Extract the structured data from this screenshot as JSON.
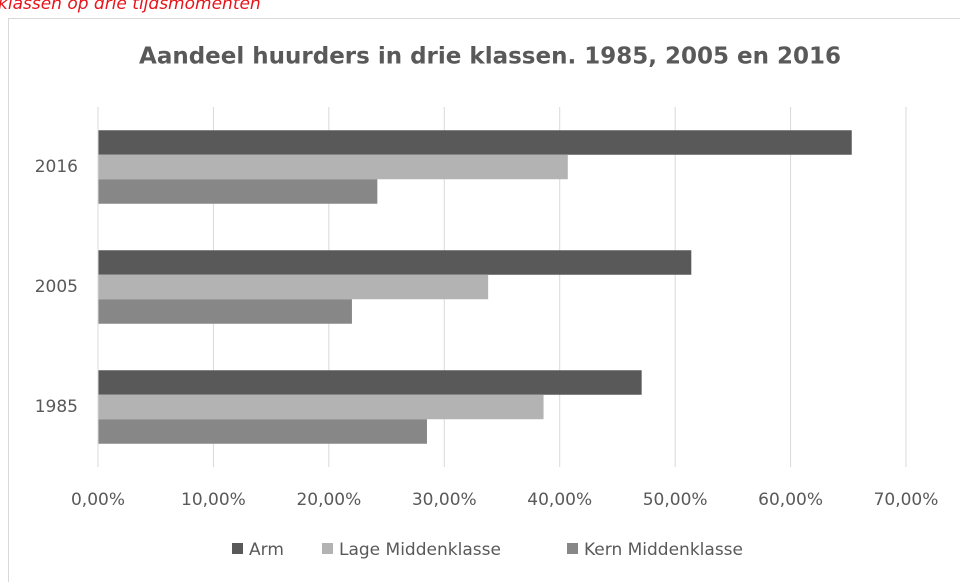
{
  "caption": "klassen op drie tijdsmomenten",
  "chart_data": {
    "type": "hbar",
    "title": "Aandeel huurders in drie klassen. 1985, 2005 en 2016",
    "categories": [
      "2016",
      "2005",
      "1985"
    ],
    "series": [
      {
        "name": "Arm",
        "color": "#595959",
        "values": [
          65.3,
          51.4,
          47.1
        ]
      },
      {
        "name": "Lage Middenklasse",
        "color": "#b3b3b3",
        "values": [
          40.7,
          33.8,
          38.6
        ]
      },
      {
        "name": "Kern Middenklasse",
        "color": "#878787",
        "values": [
          24.2,
          22.0,
          28.5
        ]
      }
    ],
    "xlim": [
      0,
      70
    ],
    "xticks": [
      {
        "value": 0,
        "label": "0,00%"
      },
      {
        "value": 10,
        "label": "10,00%"
      },
      {
        "value": 20,
        "label": "20,00%"
      },
      {
        "value": 30,
        "label": "30,00%"
      },
      {
        "value": 40,
        "label": "40,00%"
      },
      {
        "value": 50,
        "label": "50,00%"
      },
      {
        "value": 60,
        "label": "60,00%"
      },
      {
        "value": 70,
        "label": "70,00%"
      }
    ],
    "grid": true,
    "legend": "bottom"
  }
}
